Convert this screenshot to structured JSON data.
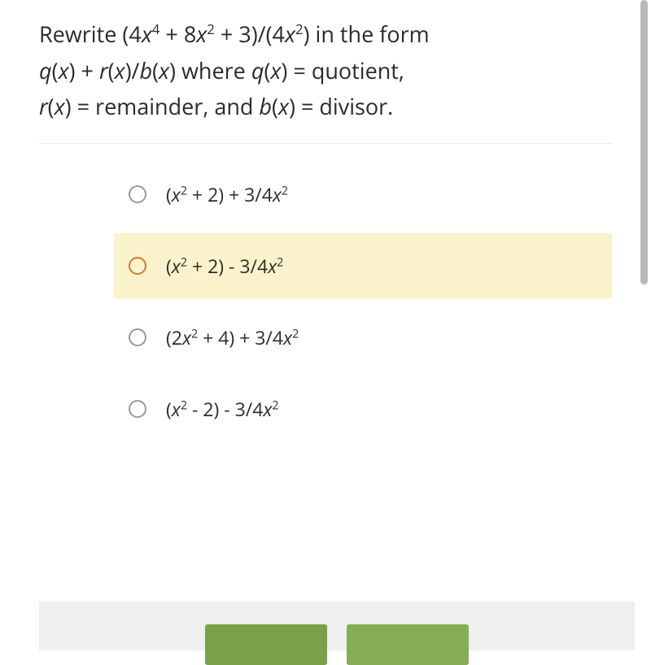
{
  "question": {
    "line1_pre": "Rewrite  (4",
    "line1_x4": "x",
    "line1_mid1": " + 8",
    "line1_x2a": "x",
    "line1_mid2": " + 3)/(4",
    "line1_x2b": "x",
    "line1_post": ") in the form",
    "line2_qx": "q",
    "line2_x1": "x",
    "line2_plus": ") + ",
    "line2_rx": "r",
    "line2_x2": "x",
    "line2_slash": ")/",
    "line2_bx": "b",
    "line2_x3": "x",
    "line2_where": ") where ",
    "line2_qx2": "q",
    "line2_x4": "x",
    "line2_eq": ") = quotient,",
    "line3_rx": "r",
    "line3_x1": "x",
    "line3_mid": ") = remainder, and ",
    "line3_bx": "b",
    "line3_x2": "x",
    "line3_end": ") = divisor."
  },
  "options": [
    {
      "pre": "(",
      "x1": "x",
      "mid1": " + 2) + 3/4",
      "x2": "x",
      "highlighted": false
    },
    {
      "pre": "(",
      "x1": "x",
      "mid1": " + 2) - 3/4",
      "x2": "x",
      "highlighted": true
    },
    {
      "pre": "(2",
      "x1": "x",
      "mid1": " + 4) + 3/4",
      "x2": "x",
      "highlighted": false
    },
    {
      "pre": "(",
      "x1": "x",
      "mid1": " - 2) - 3/4",
      "x2": "x",
      "highlighted": false
    }
  ],
  "colors": {
    "highlight_bg": "#faf2ca",
    "radio_normal": "#999999",
    "radio_highlight": "#d07a3a",
    "text": "#2b2b2b",
    "border": "#e8e8e8",
    "bottom_bg": "#efefef",
    "btn1": "#79a14a",
    "btn2": "#85ad54",
    "scrollbar": "#b8b8b8"
  }
}
